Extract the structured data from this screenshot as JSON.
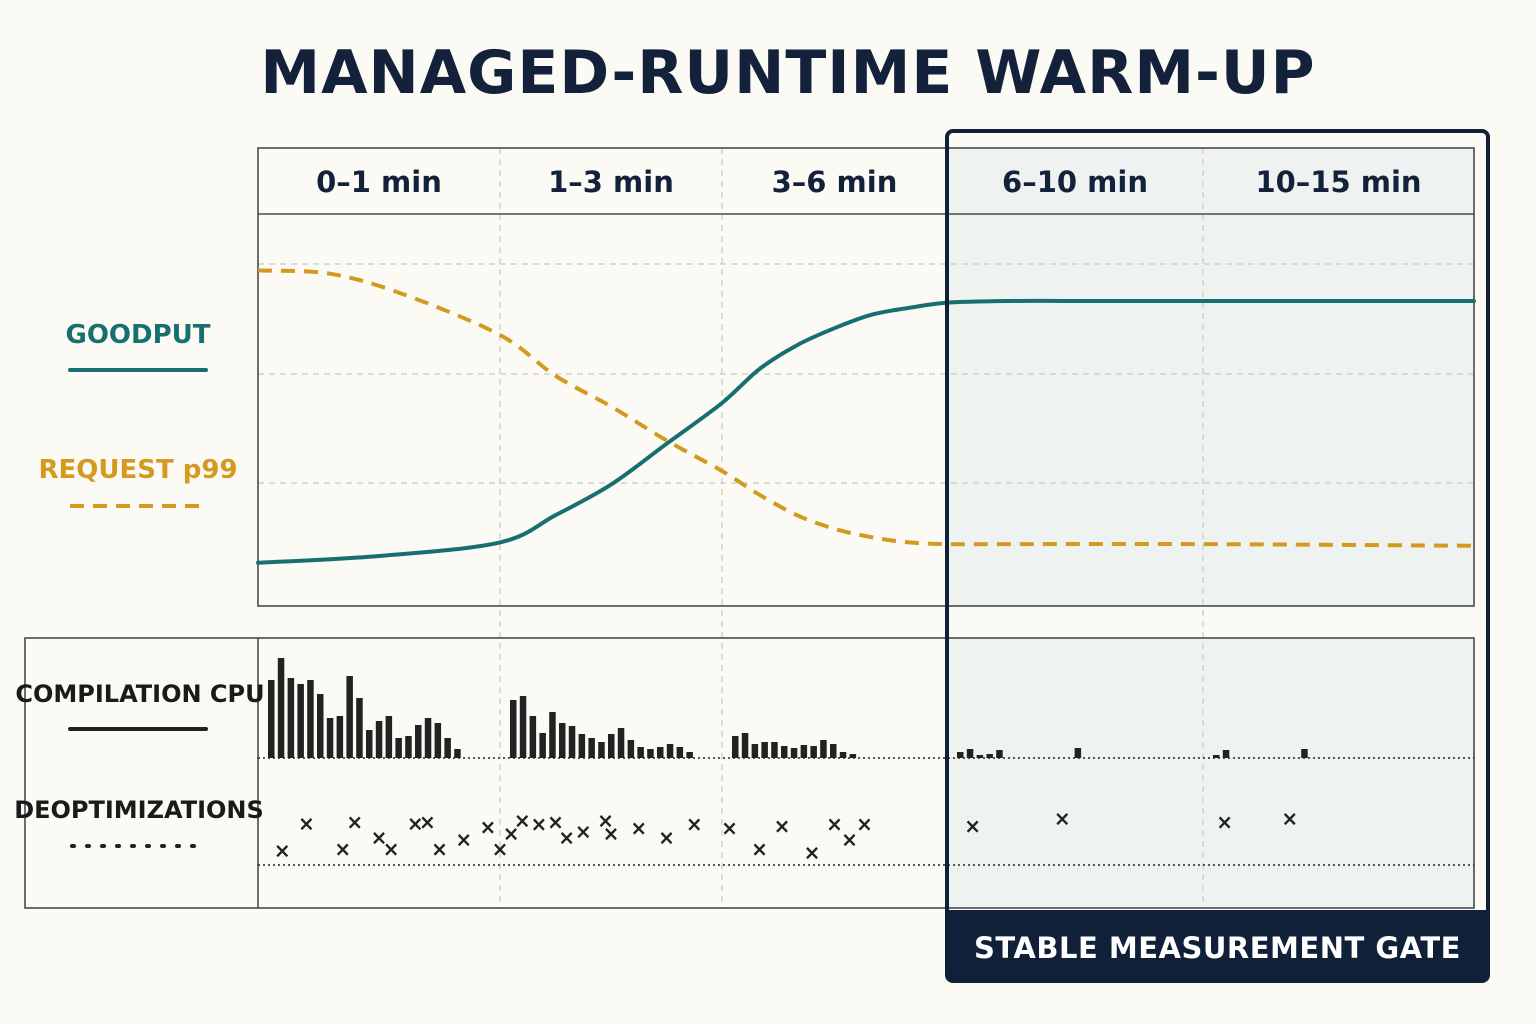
{
  "chart_data": {
    "type": "line",
    "title": "MANAGED-RUNTIME WARM-UP",
    "x_unit": "min",
    "x_range": [
      0,
      15
    ],
    "phases": [
      {
        "label": "0–1 min",
        "start": 0,
        "end": 1
      },
      {
        "label": "1–3 min",
        "start": 1,
        "end": 3
      },
      {
        "label": "3–6 min",
        "start": 3,
        "end": 6
      },
      {
        "label": "6–10 min",
        "start": 6,
        "end": 10
      },
      {
        "label": "10–15 min",
        "start": 10,
        "end": 15
      }
    ],
    "y_range": [
      0,
      100
    ],
    "grid": true,
    "legend_position": "left",
    "series": [
      {
        "name": "GOODPUT",
        "color": "#17706f",
        "style": "solid",
        "x": [
          0,
          0.5,
          1,
          1.5,
          2,
          2.5,
          3,
          3.5,
          4,
          4.5,
          5,
          5.5,
          6,
          7,
          8,
          10,
          12,
          15
        ],
        "y": [
          8,
          10,
          14,
          22,
          31,
          43,
          55,
          65,
          72,
          77,
          81,
          83,
          84.5,
          85,
          85,
          85,
          85,
          85
        ]
      },
      {
        "name": "REQUEST p99",
        "color": "#d49a1f",
        "style": "dashed",
        "x": [
          0,
          0.3,
          0.6,
          1,
          1.5,
          2,
          2.5,
          3,
          3.5,
          4,
          4.5,
          5,
          5.5,
          6,
          7,
          10,
          15
        ],
        "y": [
          94,
          93,
          87,
          75,
          63,
          54,
          44,
          35,
          28,
          22,
          18,
          15.5,
          14,
          13.5,
          13.5,
          13.5,
          13
        ]
      }
    ],
    "compilation_cpu": {
      "name": "COMPILATION CPU",
      "color": "#222222",
      "bins": [
        {
          "phase": 0,
          "values": [
            78,
            100,
            80,
            74,
            78,
            64,
            40,
            42,
            82,
            60,
            28,
            37,
            42,
            20,
            22,
            33,
            40,
            35,
            20,
            9
          ]
        },
        {
          "phase": 1,
          "values": [
            58,
            62,
            42,
            25,
            46,
            35,
            32,
            24,
            20,
            16,
            24,
            30,
            18,
            11,
            9,
            11,
            14,
            11,
            6
          ]
        },
        {
          "phase": 2,
          "values": [
            22,
            25,
            14,
            16,
            16,
            12,
            10,
            13,
            12,
            18,
            14,
            6,
            4
          ]
        },
        {
          "phase": 3,
          "values": [
            6,
            9,
            3,
            4,
            8,
            0,
            0,
            0,
            0,
            0,
            0,
            0,
            10,
            0,
            0,
            0
          ]
        },
        {
          "phase": 4,
          "values": [
            3,
            8,
            0,
            0,
            0,
            0,
            0,
            0,
            0,
            9
          ]
        }
      ]
    },
    "deoptimizations": {
      "name": "DEOPTIMIZATIONS",
      "color": "#222222",
      "points": [
        [
          0.1,
          0.9
        ],
        [
          0.2,
          0.18
        ],
        [
          0.35,
          0.85
        ],
        [
          0.4,
          0.15
        ],
        [
          0.5,
          0.55
        ],
        [
          0.55,
          0.85
        ],
        [
          0.65,
          0.18
        ],
        [
          0.7,
          0.15
        ],
        [
          0.75,
          0.85
        ],
        [
          0.85,
          0.6
        ],
        [
          0.95,
          0.28
        ],
        [
          1.0,
          0.85
        ],
        [
          1.1,
          0.45
        ],
        [
          1.2,
          0.1
        ],
        [
          1.35,
          0.2
        ],
        [
          1.5,
          0.15
        ],
        [
          1.6,
          0.55
        ],
        [
          1.75,
          0.4
        ],
        [
          1.95,
          0.1
        ],
        [
          2.0,
          0.45
        ],
        [
          2.25,
          0.3
        ],
        [
          2.5,
          0.55
        ],
        [
          2.75,
          0.2
        ],
        [
          3.1,
          0.3
        ],
        [
          3.5,
          0.85
        ],
        [
          3.8,
          0.25
        ],
        [
          4.2,
          0.95
        ],
        [
          4.5,
          0.2
        ],
        [
          4.7,
          0.6
        ],
        [
          4.9,
          0.2
        ],
        [
          6.4,
          0.25
        ],
        [
          7.8,
          0.05
        ],
        [
          10.4,
          0.15
        ],
        [
          11.6,
          0.05
        ]
      ]
    },
    "highlight": {
      "label": "STABLE MEASUREMENT GATE",
      "start": 6,
      "end": 15,
      "color": "#0f2038"
    }
  },
  "colors": {
    "background": "#fbfaf4",
    "title": "#13213a",
    "gate_fill": "#eef3f2"
  }
}
